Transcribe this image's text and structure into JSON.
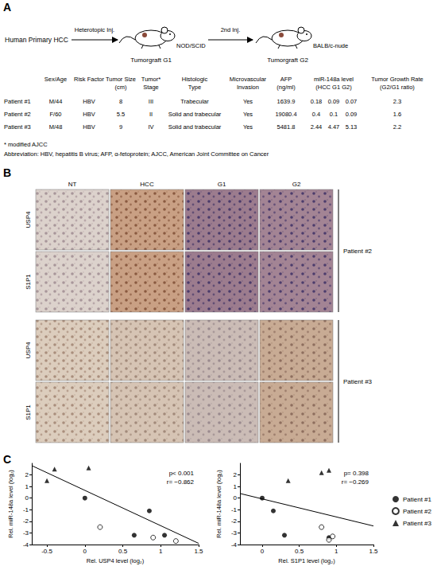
{
  "panel_labels": [
    "A",
    "B",
    "C"
  ],
  "panel_a": {
    "diagram": {
      "source": "Human Primary HCC",
      "step1": "Heterotopic Inj.",
      "host1": "NOD/SCID",
      "graft1": "Tumorgraft G1",
      "step2": "2nd Inj.",
      "host2": "BALB/c-nude",
      "graft2": "Tumorgraft G2"
    },
    "table": {
      "header": [
        [
          "Sex/Age"
        ],
        [
          "Risk Factor"
        ],
        [
          "Tumor Size",
          "(cm)"
        ],
        [
          "Tumor*",
          "Stage"
        ],
        [
          "Histologic",
          "Type"
        ],
        [
          "Microvascular",
          "Invasion"
        ],
        [
          "AFP",
          "(ng/ml)"
        ],
        [
          "miR-148a level",
          "(HCC  G1  G2)"
        ],
        [
          "Tumor Growth Rate",
          "(G2/G1 ratio)"
        ]
      ],
      "rows": [
        [
          "Patient #1",
          "M/44",
          "HBV",
          8,
          "III",
          "Trabecular",
          "Yes",
          1639.9,
          [
            0.18,
            0.09,
            0.07
          ],
          2.3
        ],
        [
          "Patient #2",
          "F/60",
          "HBV",
          5.5,
          "II",
          "Solid and trabecular",
          "Yes",
          19080.4,
          [
            0.4,
            0.1,
            0.09
          ],
          1.6
        ],
        [
          "Patient #3",
          "M/48",
          "HBV",
          9,
          "IV",
          "Solid and trabecular",
          "Yes",
          5481.8,
          [
            2.44,
            4.47,
            5.13
          ],
          2.2
        ]
      ]
    },
    "footnotes": [
      "* modified AJCC",
      "Abbreviation: HBV, hepatitis B virus; AFP, α-fetoprotein; AJCC, American Joint Committee on Cancer"
    ]
  },
  "panel_b": {
    "columns": [
      "NT",
      "HCC",
      "G1",
      "G2"
    ],
    "blocks": [
      {
        "patient": "Patient #2",
        "rows": [
          "USP4",
          "S1P1"
        ]
      },
      {
        "patient": "Patient #3",
        "rows": [
          "USP4",
          "S1P1"
        ]
      }
    ]
  },
  "chart_data": [
    {
      "type": "scatter",
      "x_label": "Rel. USP4 level (log₂)",
      "y_label": "Rel. miR-148a level (log₂)",
      "xlim": [
        -0.7,
        1.5
      ],
      "xticks": [
        -0.5,
        0,
        0.5,
        1,
        1.5
      ],
      "ylim": [
        -4,
        3
      ],
      "yticks": [
        -4,
        -3,
        -2,
        -1,
        0,
        1,
        2
      ],
      "grid": false,
      "legend": false,
      "annotations": [
        "p< 0.001",
        "r= −0.862"
      ],
      "trend_line": {
        "x": [
          -0.7,
          1.5
        ],
        "y": [
          2.8,
          -3.9
        ]
      },
      "series": [
        {
          "name": "Patient #1",
          "marker": "circle",
          "color": "#000000",
          "x": [
            0,
            0.85,
            0.65,
            1.05
          ],
          "values": [
            0,
            -1.1,
            -3.2,
            -3.2
          ]
        },
        {
          "name": "Patient #2",
          "marker": "circle_open",
          "color": "#000000",
          "x": [
            0.2,
            0.9,
            1.2
          ],
          "values": [
            -2.5,
            -3.4,
            -3.7
          ]
        },
        {
          "name": "Patient #3",
          "marker": "triangle",
          "color": "#000000",
          "x": [
            -0.4,
            0.05,
            -0.5
          ],
          "values": [
            2.5,
            2.6,
            1.5
          ]
        }
      ]
    },
    {
      "type": "scatter",
      "x_label": "Rel. S1P1 level (log₂)",
      "y_label": "Rel. miR-148a level (log₂)",
      "xlim": [
        -0.3,
        1.5
      ],
      "xticks": [
        0,
        0.5,
        1,
        1.5
      ],
      "ylim": [
        -4,
        3
      ],
      "yticks": [
        -4,
        -3,
        -2,
        -1,
        0,
        1,
        2
      ],
      "grid": false,
      "legend": "right",
      "annotations": [
        "p= 0.398",
        "r= −0.269"
      ],
      "trend_line": {
        "x": [
          -0.3,
          1.5
        ],
        "y": [
          0.4,
          -2.4
        ]
      },
      "series": [
        {
          "name": "Patient #1",
          "marker": "circle",
          "color": "#000000",
          "x": [
            0,
            0.15,
            0.3,
            0.9
          ],
          "values": [
            0,
            -1.1,
            -3.2,
            -3.4
          ]
        },
        {
          "name": "Patient #2",
          "marker": "circle_open",
          "color": "#000000",
          "x": [
            0.8,
            0.9,
            0.95
          ],
          "values": [
            -2.5,
            -3.6,
            -3.3
          ]
        },
        {
          "name": "Patient #3",
          "marker": "triangle",
          "color": "#000000",
          "x": [
            0.35,
            0.8,
            0.9
          ],
          "values": [
            1.5,
            2.2,
            2.4
          ]
        }
      ]
    }
  ]
}
